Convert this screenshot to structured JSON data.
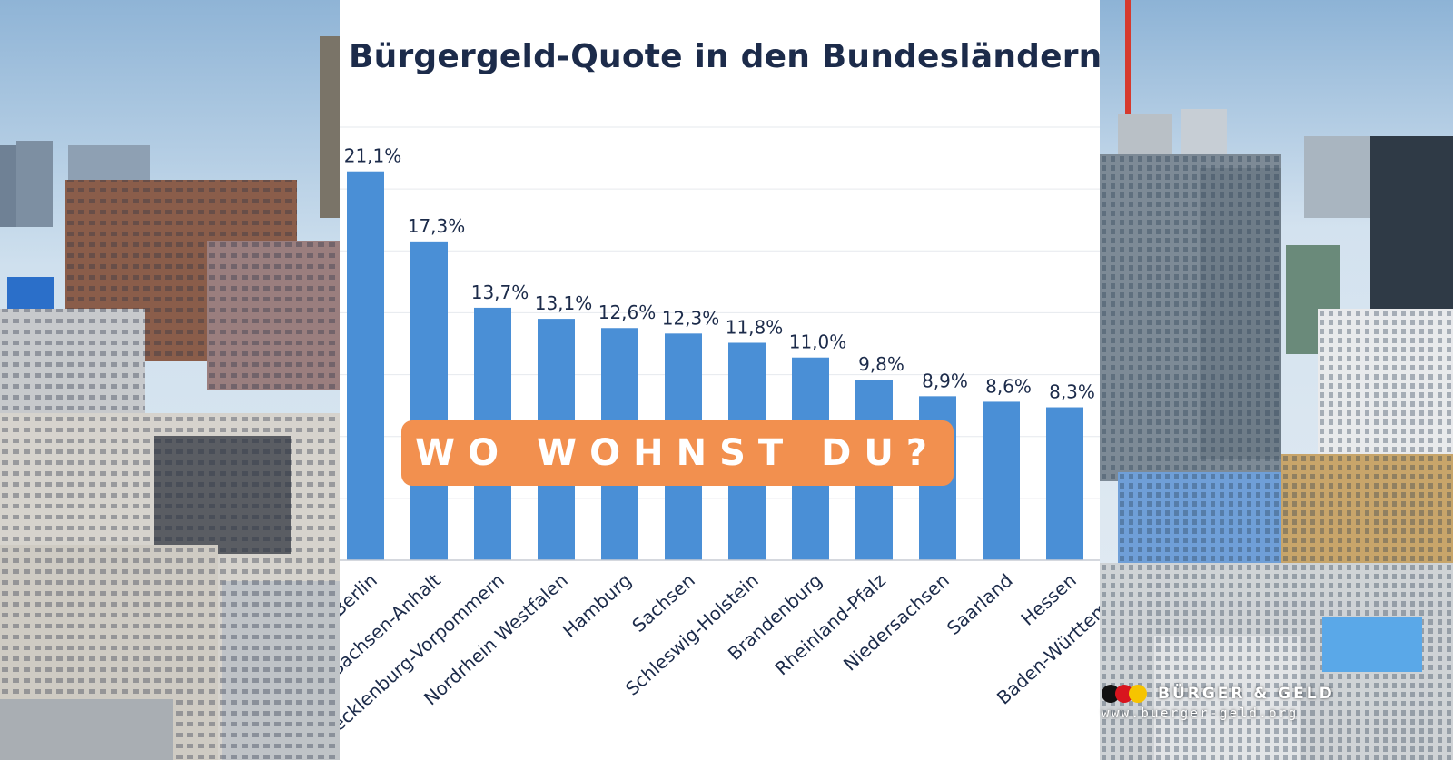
{
  "chart_data": {
    "type": "bar",
    "title": "Bürgergeld-Quote in den Bundesländern",
    "categories": [
      "Berlin",
      "Sachsen-Anhalt",
      "Mecklenburg-Vorpommern",
      "Nordrhein Westfalen",
      "Hamburg",
      "Sachsen",
      "Schleswig-Holstein",
      "Brandenburg",
      "Rheinland-Pfalz",
      "Niedersachsen",
      "Saarland",
      "Hessen",
      "Baden-Württemberg"
    ],
    "values": [
      21.1,
      17.3,
      13.7,
      13.1,
      12.6,
      12.3,
      11.8,
      11.0,
      9.8,
      8.9,
      8.6,
      8.3,
      null
    ],
    "value_labels": [
      "21,1%",
      "17,3%",
      "13,7%",
      "13,1%",
      "12,6%",
      "12,3%",
      "11,8%",
      "11,0%",
      "9,8%",
      "8,9%",
      "8,6%",
      "8,3%",
      ""
    ],
    "xlabel": "",
    "ylabel": "",
    "ylim": [
      0,
      23.5
    ],
    "grid": true,
    "bar_color": "#4a8fd6"
  },
  "overlay": {
    "text": "WO WOHNST DU?",
    "color": "#f2904f"
  },
  "brand": {
    "name": "BÜRGER & GELD",
    "url": "www.buerger-geld.org"
  }
}
